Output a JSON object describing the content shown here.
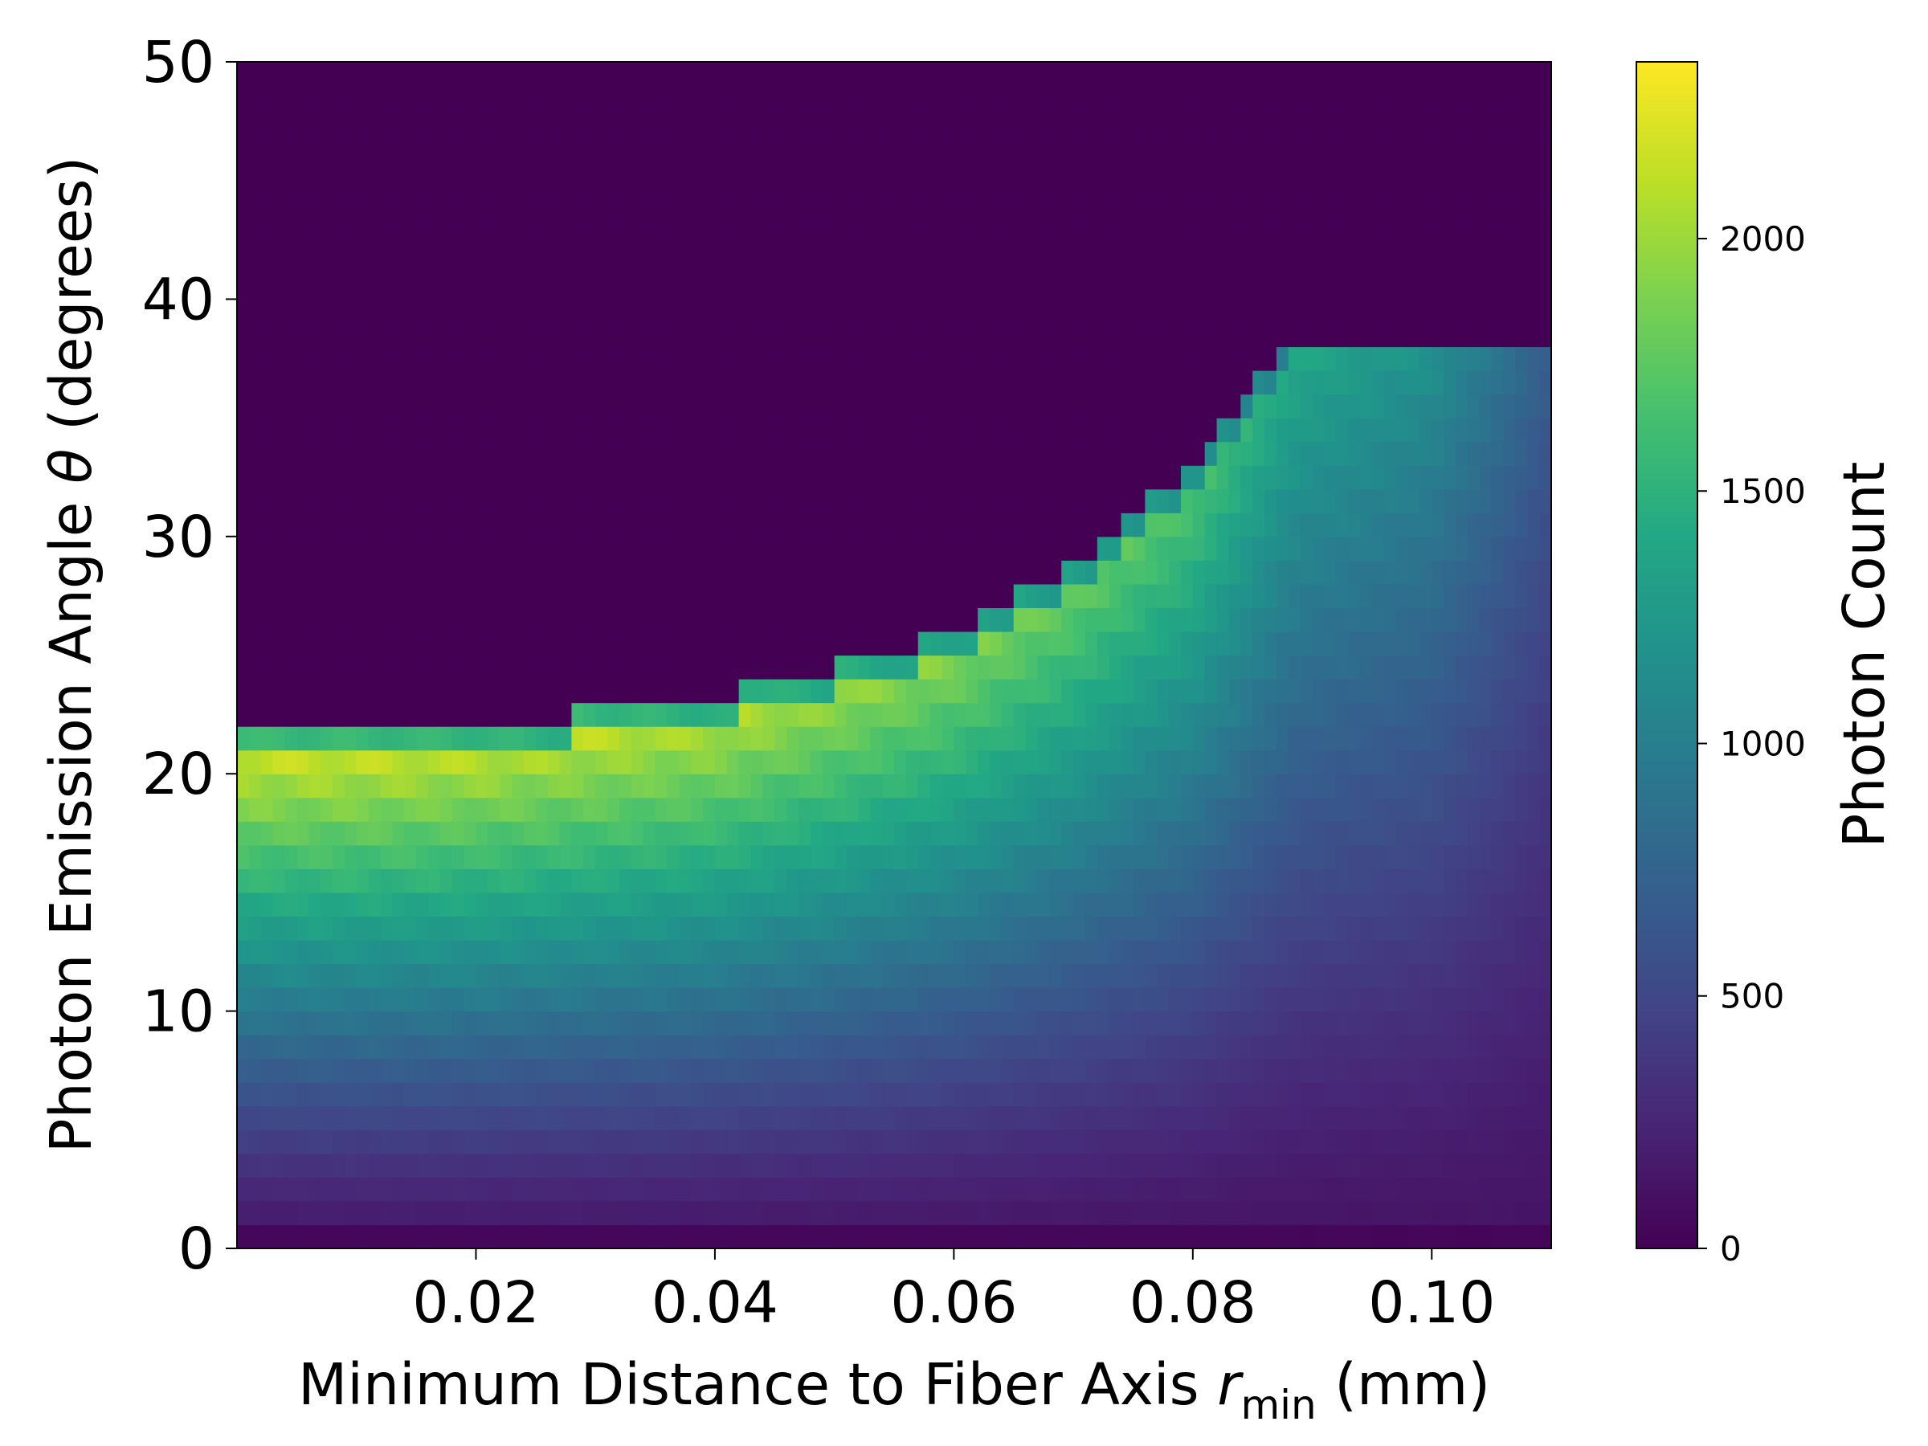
{
  "chart_data": {
    "type": "heatmap",
    "title": "",
    "xlabel": {
      "prefix": "Minimum Distance to Fiber Axis ",
      "var": "r",
      "sub": "min",
      "suffix": " (mm)"
    },
    "ylabel": {
      "prefix": "Photon Emission Angle ",
      "var": "θ",
      "suffix": " (degrees)"
    },
    "colorbar_label": "Photon Count",
    "colormap": "viridis",
    "xlim": [
      0.0,
      0.11
    ],
    "ylim": [
      0,
      50
    ],
    "clim": [
      0,
      2350
    ],
    "x_ticks": [
      0.02,
      0.04,
      0.06,
      0.08,
      0.1
    ],
    "x_tick_labels": [
      "0.02",
      "0.04",
      "0.06",
      "0.08",
      "0.10"
    ],
    "y_ticks": [
      0,
      10,
      20,
      30,
      40,
      50
    ],
    "y_tick_labels": [
      "0",
      "10",
      "20",
      "30",
      "40",
      "50"
    ],
    "colorbar_ticks": [
      0,
      500,
      1000,
      1500,
      2000
    ],
    "colorbar_tick_labels": [
      "0",
      "500",
      "1000",
      "1500",
      "2000"
    ],
    "bins": {
      "x_count": 110,
      "y_count": 50
    },
    "profile": {
      "description_of_values": "Per column: the emission-angle cutoff (deg) above which counts are ~0, and the peak count near the cutoff; counts fall off toward 0 deg.",
      "cutoff_angle_points": [
        {
          "x": 0.0,
          "theta": 21.5
        },
        {
          "x": 0.01,
          "theta": 21.6
        },
        {
          "x": 0.02,
          "theta": 22.0
        },
        {
          "x": 0.03,
          "theta": 22.6
        },
        {
          "x": 0.04,
          "theta": 23.3
        },
        {
          "x": 0.05,
          "theta": 24.5
        },
        {
          "x": 0.06,
          "theta": 26.0
        },
        {
          "x": 0.07,
          "theta": 28.8
        },
        {
          "x": 0.08,
          "theta": 33.0
        },
        {
          "x": 0.088,
          "theta": 38.5
        },
        {
          "x": 0.11,
          "theta": 38.5
        }
      ],
      "peak_count_points": [
        {
          "x": 0.0,
          "count": 2250
        },
        {
          "x": 0.02,
          "count": 2250
        },
        {
          "x": 0.04,
          "count": 2200
        },
        {
          "x": 0.06,
          "count": 2000
        },
        {
          "x": 0.08,
          "count": 1750
        },
        {
          "x": 0.09,
          "count": 1400
        },
        {
          "x": 0.1,
          "count": 1200
        },
        {
          "x": 0.11,
          "count": 700
        }
      ],
      "bottom_count": 120
    }
  }
}
